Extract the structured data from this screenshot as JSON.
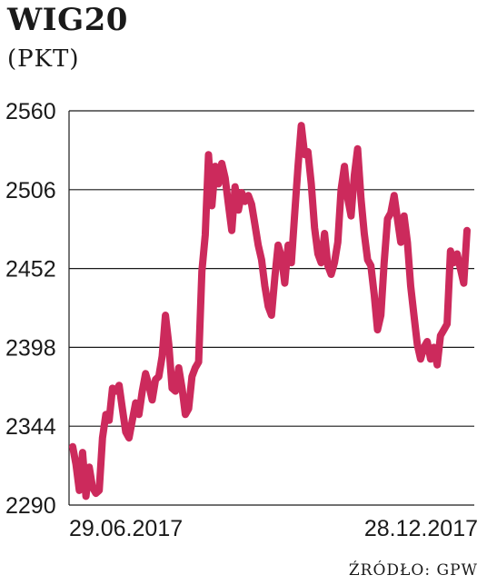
{
  "chart_data": {
    "type": "line",
    "title": "WIG20",
    "subtitle": "(PKT)",
    "ylim": [
      2290,
      2560
    ],
    "yticks": [
      "2560",
      "2506",
      "2452",
      "2398",
      "2344",
      "2290"
    ],
    "xtick_labels": [
      "29.06.2017",
      "28.12.2017"
    ],
    "grid": true,
    "color": "#cc2a5c",
    "source": "ŹRÓDŁO: GPW",
    "series": [
      {
        "values": [
          2330,
          2318,
          2300,
          2326,
          2296,
          2316,
          2302,
          2298,
          2300,
          2336,
          2352,
          2348,
          2370,
          2368,
          2372,
          2356,
          2340,
          2336,
          2348,
          2360,
          2352,
          2368,
          2380,
          2372,
          2362,
          2376,
          2378,
          2392,
          2420,
          2400,
          2370,
          2368,
          2384,
          2370,
          2352,
          2356,
          2378,
          2384,
          2388,
          2450,
          2475,
          2530,
          2495,
          2522,
          2510,
          2524,
          2514,
          2496,
          2478,
          2508,
          2492,
          2504,
          2498,
          2502,
          2496,
          2482,
          2468,
          2458,
          2440,
          2426,
          2420,
          2446,
          2468,
          2460,
          2442,
          2468,
          2456,
          2490,
          2522,
          2550,
          2530,
          2532,
          2510,
          2480,
          2462,
          2456,
          2476,
          2454,
          2448,
          2456,
          2470,
          2506,
          2522,
          2500,
          2488,
          2516,
          2534,
          2500,
          2476,
          2458,
          2454,
          2434,
          2410,
          2420,
          2456,
          2486,
          2490,
          2502,
          2486,
          2470,
          2488,
          2470,
          2440,
          2420,
          2400,
          2390,
          2398,
          2402,
          2390,
          2398,
          2386,
          2406,
          2410,
          2414,
          2464,
          2456,
          2462,
          2452,
          2442,
          2478
        ]
      }
    ]
  }
}
